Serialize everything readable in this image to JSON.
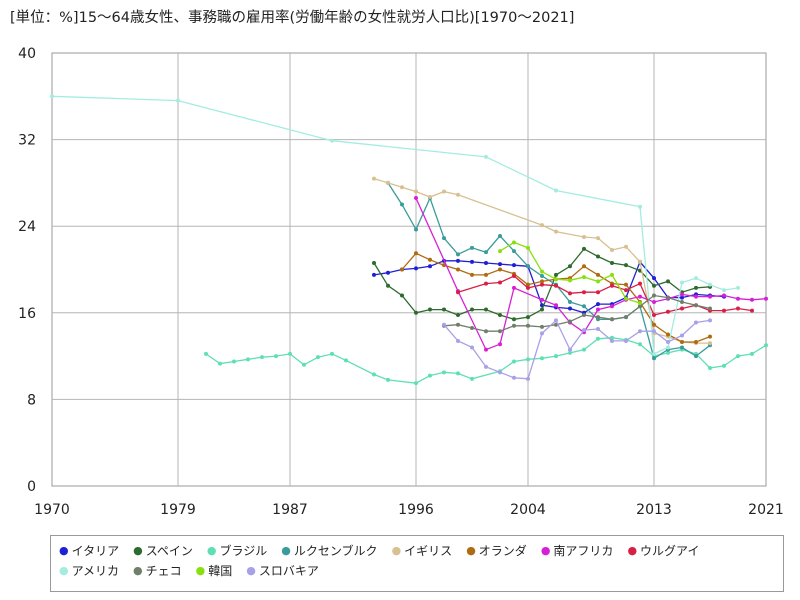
{
  "title": "[単位：%]15〜64歳女性、事務職の雇用率(労働年齢の女性就労人口比)[1970〜2021]",
  "chart_data": {
    "type": "line",
    "title": "[単位：%]15〜64歳女性、事務職の雇用率(労働年齢の女性就労人口比)[1970〜2021]",
    "xlabel": "",
    "ylabel": "",
    "xlim": [
      1970,
      2021
    ],
    "ylim": [
      0,
      40
    ],
    "x_ticks": [
      "1970",
      "1979",
      "1987",
      "1996",
      "2004",
      "2013",
      "2021"
    ],
    "y_ticks": [
      "0",
      "8",
      "16",
      "24",
      "32",
      "40"
    ],
    "grid": true,
    "legend_position": "bottom",
    "series": [
      {
        "name": "イタリア",
        "color": "#1f1fd6",
        "points": [
          [
            1993,
            19.5
          ],
          [
            1994,
            19.7
          ],
          [
            1995,
            20.0
          ],
          [
            1996,
            20.1
          ],
          [
            1997,
            20.3
          ],
          [
            1998,
            20.8
          ],
          [
            1999,
            20.8
          ],
          [
            2000,
            20.7
          ],
          [
            2001,
            20.6
          ],
          [
            2002,
            20.5
          ],
          [
            2003,
            20.4
          ],
          [
            2004,
            20.3
          ],
          [
            2005,
            16.7
          ],
          [
            2006,
            16.5
          ],
          [
            2007,
            16.4
          ],
          [
            2008,
            16.0
          ],
          [
            2009,
            16.8
          ],
          [
            2010,
            16.8
          ],
          [
            2011,
            17.4
          ],
          [
            2012,
            20.7
          ],
          [
            2013,
            19.2
          ],
          [
            2014,
            17.4
          ],
          [
            2015,
            17.4
          ],
          [
            2016,
            17.7
          ],
          [
            2017,
            17.6
          ],
          [
            2018,
            17.5
          ]
        ]
      },
      {
        "name": "スペイン",
        "color": "#2e6b2e",
        "points": [
          [
            1993,
            20.6
          ],
          [
            1994,
            18.5
          ],
          [
            1995,
            17.6
          ],
          [
            1996,
            16.0
          ],
          [
            1997,
            16.3
          ],
          [
            1998,
            16.3
          ],
          [
            1999,
            15.8
          ],
          [
            2000,
            16.3
          ],
          [
            2001,
            16.3
          ],
          [
            2002,
            15.8
          ],
          [
            2003,
            15.4
          ],
          [
            2004,
            15.6
          ],
          [
            2005,
            16.3
          ],
          [
            2006,
            19.5
          ],
          [
            2007,
            20.3
          ],
          [
            2008,
            21.9
          ],
          [
            2009,
            21.2
          ],
          [
            2010,
            20.6
          ],
          [
            2011,
            20.4
          ],
          [
            2012,
            19.9
          ],
          [
            2013,
            18.5
          ],
          [
            2014,
            18.9
          ],
          [
            2015,
            17.9
          ],
          [
            2016,
            18.3
          ],
          [
            2017,
            18.4
          ]
        ]
      },
      {
        "name": "ブラジル",
        "color": "#5fe0b2",
        "points": [
          [
            1981,
            12.2
          ],
          [
            1982,
            11.3
          ],
          [
            1983,
            11.5
          ],
          [
            1984,
            11.7
          ],
          [
            1985,
            11.9
          ],
          [
            1986,
            12.0
          ],
          [
            1987,
            12.2
          ],
          [
            1988,
            11.2
          ],
          [
            1989,
            11.9
          ],
          [
            1990,
            12.2
          ],
          [
            1991,
            11.6
          ],
          [
            1993,
            10.3
          ],
          [
            1994,
            9.8
          ],
          [
            1996,
            9.5
          ],
          [
            1997,
            10.2
          ],
          [
            1998,
            10.5
          ],
          [
            1999,
            10.4
          ],
          [
            2000,
            9.9
          ],
          [
            2002,
            10.6
          ],
          [
            2003,
            11.5
          ],
          [
            2004,
            11.7
          ],
          [
            2005,
            11.8
          ],
          [
            2006,
            12.0
          ],
          [
            2007,
            12.3
          ],
          [
            2008,
            12.6
          ],
          [
            2009,
            13.6
          ],
          [
            2010,
            13.7
          ],
          [
            2011,
            13.5
          ],
          [
            2012,
            13.1
          ],
          [
            2013,
            12.0
          ],
          [
            2014,
            12.3
          ],
          [
            2015,
            12.6
          ],
          [
            2016,
            12.2
          ],
          [
            2017,
            10.9
          ],
          [
            2018,
            11.1
          ],
          [
            2019,
            12.0
          ],
          [
            2020,
            12.2
          ],
          [
            2021,
            13.0
          ]
        ]
      },
      {
        "name": "ルクセンブルク",
        "color": "#3a9b9b",
        "points": [
          [
            1994,
            28.0
          ],
          [
            1995,
            26.0
          ],
          [
            1996,
            23.7
          ],
          [
            1997,
            26.6
          ],
          [
            1998,
            22.9
          ],
          [
            1999,
            21.4
          ],
          [
            2000,
            22.0
          ],
          [
            2001,
            21.6
          ],
          [
            2002,
            23.1
          ],
          [
            2003,
            21.7
          ],
          [
            2004,
            20.3
          ],
          [
            2005,
            19.4
          ],
          [
            2006,
            18.6
          ],
          [
            2007,
            17.0
          ],
          [
            2008,
            16.6
          ],
          [
            2009,
            15.4
          ],
          [
            2010,
            15.4
          ],
          [
            2011,
            15.6
          ],
          [
            2012,
            16.6
          ],
          [
            2013,
            11.8
          ],
          [
            2014,
            12.6
          ],
          [
            2015,
            12.8
          ],
          [
            2016,
            12.0
          ],
          [
            2017,
            13.0
          ]
        ]
      },
      {
        "name": "イギリス",
        "color": "#d8c090",
        "points": [
          [
            1993,
            28.4
          ],
          [
            1994,
            28.0
          ],
          [
            1995,
            27.6
          ],
          [
            1996,
            27.2
          ],
          [
            1997,
            26.7
          ],
          [
            1998,
            27.2
          ],
          [
            1999,
            26.9
          ],
          [
            2005,
            24.1
          ],
          [
            2006,
            23.5
          ],
          [
            2008,
            23.0
          ],
          [
            2009,
            22.9
          ],
          [
            2010,
            21.8
          ],
          [
            2011,
            22.1
          ],
          [
            2012,
            20.7
          ],
          [
            2013,
            14.1
          ],
          [
            2014,
            13.8
          ],
          [
            2015,
            13.3
          ],
          [
            2016,
            13.2
          ],
          [
            2017,
            13.2
          ]
        ]
      },
      {
        "name": "オランダ",
        "color": "#b06a10",
        "points": [
          [
            1995,
            20.0
          ],
          [
            1996,
            21.5
          ],
          [
            1997,
            20.9
          ],
          [
            1998,
            20.4
          ],
          [
            1999,
            20.0
          ],
          [
            2000,
            19.5
          ],
          [
            2001,
            19.5
          ],
          [
            2002,
            20.0
          ],
          [
            2003,
            19.6
          ],
          [
            2004,
            18.6
          ],
          [
            2005,
            18.9
          ],
          [
            2006,
            19.1
          ],
          [
            2007,
            19.2
          ],
          [
            2008,
            20.3
          ],
          [
            2009,
            19.5
          ],
          [
            2010,
            18.7
          ],
          [
            2011,
            18.6
          ],
          [
            2012,
            17.0
          ],
          [
            2013,
            14.9
          ],
          [
            2014,
            14.0
          ],
          [
            2015,
            13.3
          ],
          [
            2016,
            13.3
          ],
          [
            2017,
            13.8
          ]
        ]
      },
      {
        "name": "南アフリカ",
        "color": "#d620d6",
        "points": [
          [
            1996,
            26.6
          ],
          [
            1999,
            18.0
          ],
          [
            2001,
            12.6
          ],
          [
            2002,
            13.1
          ],
          [
            2003,
            18.3
          ],
          [
            2005,
            17.2
          ],
          [
            2006,
            16.7
          ],
          [
            2007,
            15.1
          ],
          [
            2008,
            14.2
          ],
          [
            2009,
            16.3
          ],
          [
            2010,
            16.6
          ],
          [
            2011,
            17.2
          ],
          [
            2012,
            17.5
          ],
          [
            2013,
            17.0
          ],
          [
            2014,
            17.3
          ],
          [
            2015,
            17.7
          ],
          [
            2016,
            17.5
          ],
          [
            2017,
            17.5
          ],
          [
            2018,
            17.6
          ],
          [
            2019,
            17.3
          ],
          [
            2020,
            17.2
          ],
          [
            2021,
            17.3
          ]
        ]
      },
      {
        "name": "ウルグアイ",
        "color": "#d81f45",
        "points": [
          [
            1999,
            17.9
          ],
          [
            2001,
            18.7
          ],
          [
            2002,
            18.8
          ],
          [
            2003,
            19.4
          ],
          [
            2004,
            18.3
          ],
          [
            2005,
            18.6
          ],
          [
            2006,
            18.5
          ],
          [
            2007,
            17.8
          ],
          [
            2008,
            17.9
          ],
          [
            2009,
            17.9
          ],
          [
            2010,
            18.5
          ],
          [
            2011,
            18.1
          ],
          [
            2012,
            18.7
          ],
          [
            2013,
            15.8
          ],
          [
            2014,
            16.1
          ],
          [
            2015,
            16.4
          ],
          [
            2016,
            16.7
          ],
          [
            2017,
            16.2
          ],
          [
            2018,
            16.2
          ],
          [
            2019,
            16.4
          ],
          [
            2020,
            16.2
          ]
        ]
      },
      {
        "name": "アメリカ",
        "color": "#a4ece0",
        "points": [
          [
            1970,
            36.0
          ],
          [
            1979,
            35.6
          ],
          [
            1990,
            31.9
          ],
          [
            2001,
            30.4
          ],
          [
            2006,
            27.3
          ],
          [
            2012,
            25.8
          ],
          [
            2013,
            12.2
          ],
          [
            2014,
            12.8
          ],
          [
            2015,
            18.8
          ],
          [
            2016,
            19.2
          ],
          [
            2017,
            18.6
          ],
          [
            2018,
            18.1
          ],
          [
            2019,
            18.3
          ]
        ]
      },
      {
        "name": "チェコ",
        "color": "#6f7f6a",
        "points": [
          [
            1998,
            14.8
          ],
          [
            1999,
            14.9
          ],
          [
            2000,
            14.6
          ],
          [
            2001,
            14.3
          ],
          [
            2002,
            14.3
          ],
          [
            2003,
            14.8
          ],
          [
            2004,
            14.8
          ],
          [
            2005,
            14.7
          ],
          [
            2006,
            14.9
          ],
          [
            2007,
            15.2
          ],
          [
            2008,
            15.8
          ],
          [
            2009,
            15.6
          ],
          [
            2010,
            15.4
          ],
          [
            2011,
            15.6
          ],
          [
            2012,
            16.6
          ],
          [
            2013,
            17.6
          ],
          [
            2014,
            17.4
          ],
          [
            2015,
            17.0
          ],
          [
            2016,
            16.7
          ],
          [
            2017,
            16.4
          ]
        ]
      },
      {
        "name": "韓国",
        "color": "#88e010",
        "points": [
          [
            2002,
            21.7
          ],
          [
            2003,
            22.5
          ],
          [
            2004,
            22.0
          ],
          [
            2005,
            19.8
          ],
          [
            2006,
            19.1
          ],
          [
            2007,
            19.0
          ],
          [
            2008,
            19.3
          ],
          [
            2009,
            18.9
          ],
          [
            2010,
            19.5
          ],
          [
            2011,
            17.3
          ],
          [
            2012,
            16.9
          ]
        ]
      },
      {
        "name": "スロバキア",
        "color": "#a8a0e8",
        "points": [
          [
            1998,
            14.9
          ],
          [
            1999,
            13.4
          ],
          [
            2000,
            12.8
          ],
          [
            2001,
            11.0
          ],
          [
            2002,
            10.5
          ],
          [
            2003,
            10.0
          ],
          [
            2004,
            9.9
          ],
          [
            2005,
            14.1
          ],
          [
            2006,
            15.3
          ],
          [
            2007,
            12.6
          ],
          [
            2008,
            14.4
          ],
          [
            2009,
            14.5
          ],
          [
            2010,
            13.4
          ],
          [
            2011,
            13.4
          ],
          [
            2012,
            14.3
          ],
          [
            2013,
            14.3
          ],
          [
            2014,
            13.3
          ],
          [
            2015,
            13.9
          ],
          [
            2016,
            15.1
          ],
          [
            2017,
            15.3
          ]
        ]
      }
    ]
  }
}
